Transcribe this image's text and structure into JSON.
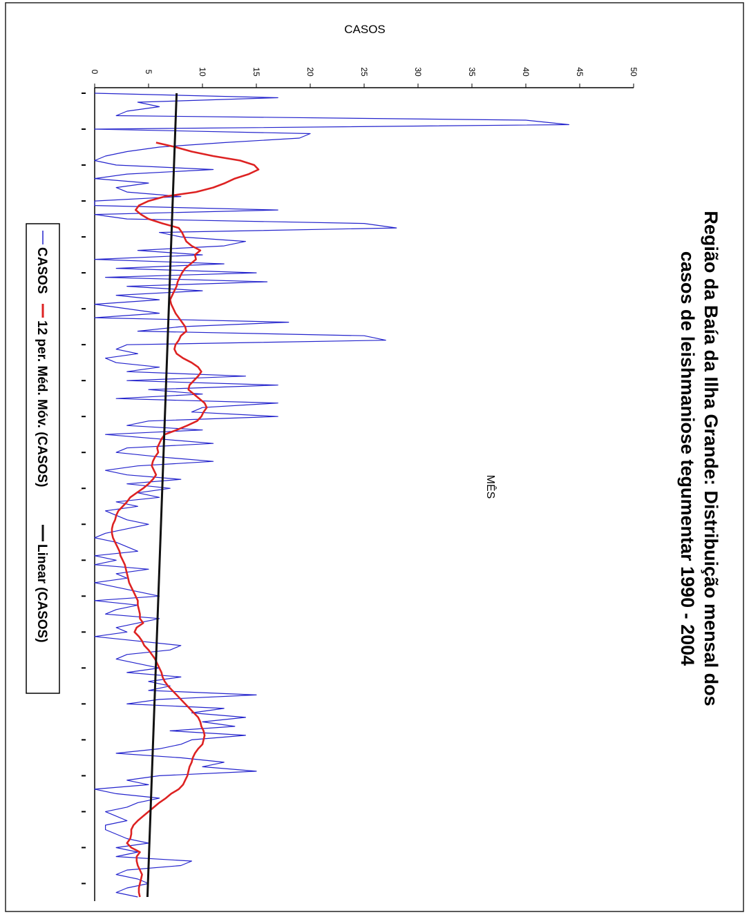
{
  "chart_data": {
    "type": "line",
    "title_line1": "Região da Baía da Ilha Grande: Distribuição mensal dos",
    "title_line2": "casos de leishmaniose tegumentar 1990 - 2004",
    "xlabel": "MÊS",
    "ylabel": "CASOS",
    "ylim": [
      0,
      50
    ],
    "y_ticks": [
      "0",
      "5",
      "10",
      "15",
      "20",
      "25",
      "30",
      "35",
      "40",
      "45",
      "50"
    ],
    "x_range": [
      1,
      180
    ],
    "grid": false,
    "legend": {
      "placement": "bottom",
      "entries": [
        "CASOS",
        "12 per. Méd. Móv. (CASOS)",
        "Linear (CASOS)"
      ]
    },
    "series": [
      {
        "name": "CASOS",
        "color": "#2222cc",
        "values": [
          0,
          17,
          4,
          6,
          3,
          2,
          40,
          44,
          0,
          20,
          19,
          12,
          6,
          3,
          1,
          0,
          2,
          11,
          3,
          0,
          5,
          2,
          3,
          8,
          0,
          0,
          17,
          0,
          3,
          25,
          28,
          6,
          8,
          14,
          12,
          4,
          10,
          0,
          12,
          2,
          15,
          1,
          16,
          3,
          10,
          2,
          6,
          0,
          3,
          6,
          0,
          18,
          8,
          4,
          25,
          27,
          3,
          2,
          4,
          1,
          2,
          6,
          3,
          14,
          3,
          17,
          5,
          10,
          2,
          17,
          10,
          9,
          17,
          5,
          3,
          10,
          1,
          6,
          11,
          3,
          2,
          6,
          11,
          4,
          1,
          3,
          8,
          3,
          7,
          4,
          6,
          2,
          4,
          1,
          2,
          3,
          5,
          3,
          1,
          0,
          2,
          3,
          4,
          0,
          2,
          0,
          5,
          2,
          3,
          0,
          2,
          4,
          6,
          0,
          4,
          2,
          1,
          6,
          4,
          2,
          3,
          0,
          4,
          8,
          7,
          3,
          2,
          4,
          6,
          3,
          8,
          5,
          7,
          5,
          15,
          6,
          3,
          12,
          9,
          14,
          10,
          13,
          7,
          14,
          9,
          8,
          6,
          2,
          8,
          12,
          10,
          15,
          6,
          3,
          5,
          0,
          2,
          6,
          4,
          3,
          1,
          2,
          3,
          1,
          1,
          2,
          3,
          5,
          2,
          4,
          2,
          9,
          8,
          3,
          2,
          4,
          5,
          3,
          2,
          4
        ]
      },
      {
        "name": "12 per. Méd. Móv. (CASOS)",
        "color": "#dd2222",
        "values": [
          null,
          null,
          null,
          null,
          null,
          null,
          null,
          null,
          null,
          null,
          null,
          5.7,
          7.5,
          9.0,
          11.0,
          13.5,
          14.8,
          15.2,
          14.3,
          13.0,
          12.1,
          11.0,
          9.4,
          6.5,
          5.0,
          4.1,
          3.8,
          4.3,
          5.0,
          6.3,
          7.8,
          8.1,
          8.3,
          8.5,
          9.0,
          9.8,
          9.3,
          9.4,
          8.9,
          8.4,
          8.1,
          7.9,
          7.7,
          7.6,
          7.4,
          7.2,
          7.0,
          7.1,
          7.3,
          7.5,
          7.8,
          8.1,
          8.4,
          8.5,
          8.0,
          7.8,
          7.5,
          7.4,
          7.6,
          8.2,
          9.0,
          9.6,
          9.9,
          9.6,
          9.2,
          8.8,
          8.7,
          9.2,
          9.7,
          10.2,
          10.4,
          10.1,
          9.9,
          9.5,
          8.6,
          7.6,
          6.5,
          6.2,
          6.0,
          5.8,
          5.9,
          5.6,
          5.4,
          5.3,
          5.5,
          5.7,
          5.4,
          5.0,
          4.5,
          3.9,
          3.3,
          3.0,
          2.6,
          2.2,
          2.0,
          1.9,
          1.7,
          1.6,
          1.6,
          1.7,
          1.9,
          2.1,
          2.3,
          2.4,
          2.6,
          2.8,
          2.9,
          3.0,
          3.1,
          3.2,
          3.4,
          3.6,
          3.8,
          4.0,
          4.0,
          4.1,
          4.2,
          4.2,
          4.5,
          3.9,
          3.7,
          4.1,
          4.4,
          4.6,
          5.0,
          5.3,
          5.6,
          5.8,
          6.0,
          6.2,
          6.3,
          6.5,
          6.8,
          7.2,
          7.6,
          8.0,
          8.4,
          8.8,
          9.2,
          9.6,
          9.8,
          9.9,
          10.1,
          10.2,
          10.1,
          10.0,
          9.6,
          9.3,
          9.1,
          9.0,
          8.8,
          8.7,
          8.6,
          8.4,
          8.2,
          7.8,
          7.1,
          6.6,
          6.0,
          5.5,
          5.0,
          4.5,
          4.0,
          3.6,
          3.4,
          3.4,
          3.3,
          3.0,
          3.4,
          4.2,
          3.9,
          3.9,
          4.0,
          4.2,
          4.4,
          4.3,
          4.2,
          4.1,
          4.1,
          4.2
        ]
      },
      {
        "name": "Linear (CASOS)",
        "color": "#111111",
        "values": [
          7.6,
          4.9
        ]
      }
    ]
  }
}
